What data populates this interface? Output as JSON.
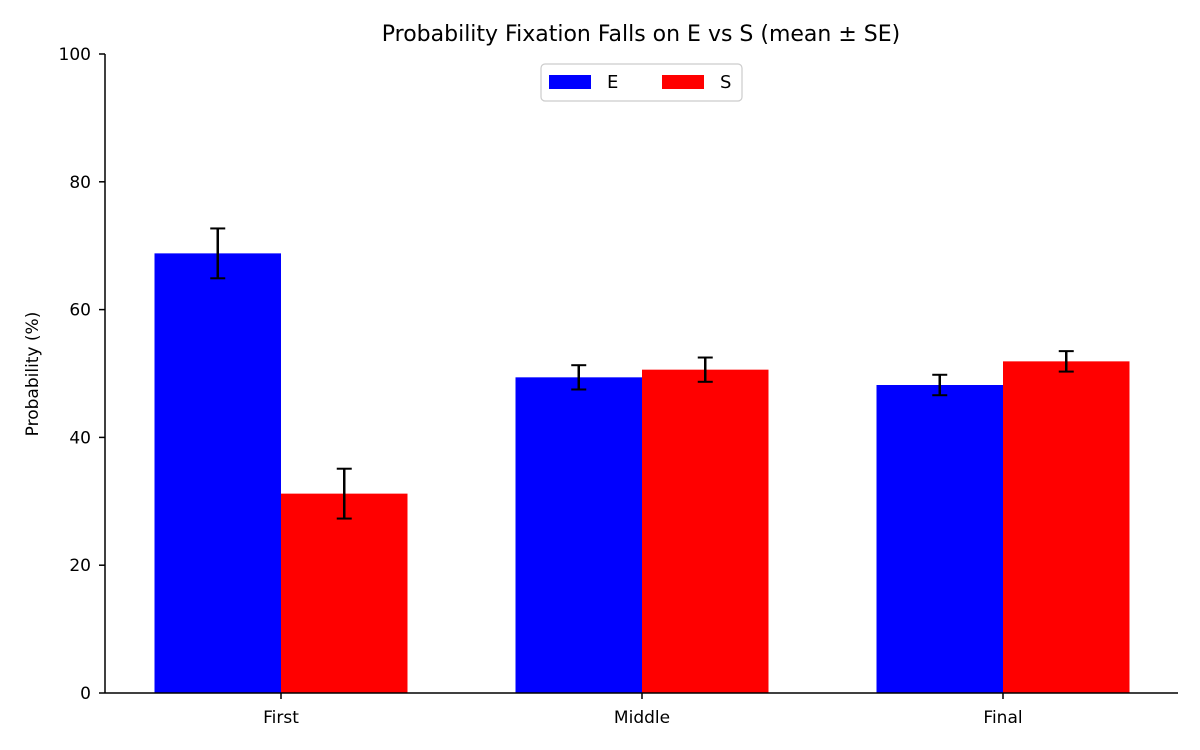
{
  "chart_data": {
    "type": "bar",
    "title": "Probability Fixation Falls on E vs S (mean ± SE)",
    "xlabel": "",
    "ylabel": "Probability (%)",
    "ylim": [
      0,
      100
    ],
    "yticks": [
      0,
      20,
      40,
      60,
      80,
      100
    ],
    "categories": [
      "First",
      "Middle",
      "Final"
    ],
    "series": [
      {
        "name": "E",
        "color": "#0000ff",
        "values": [
          68.8,
          49.4,
          48.2
        ],
        "errors": [
          3.9,
          1.9,
          1.6
        ]
      },
      {
        "name": "S",
        "color": "#ff0000",
        "values": [
          31.2,
          50.6,
          51.9
        ],
        "errors": [
          3.9,
          1.9,
          1.6
        ]
      }
    ],
    "legend": {
      "position": "top-center",
      "columns": 2
    },
    "grid": false
  }
}
